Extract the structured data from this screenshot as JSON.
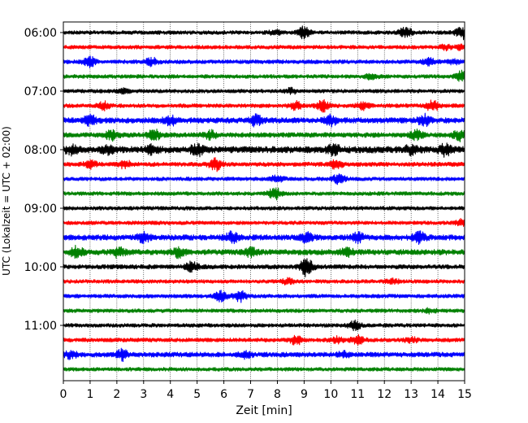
{
  "chart_data": {
    "type": "line",
    "title": "",
    "xlabel": "Zeit  [min]",
    "ylabel": "UTC (Lokalzeit = UTC + 02:00)",
    "xlim": [
      0,
      15
    ],
    "x_ticks": [
      0,
      1,
      2,
      3,
      4,
      5,
      6,
      7,
      8,
      9,
      10,
      11,
      12,
      13,
      14,
      15
    ],
    "x_tick_labels": [
      "0",
      "1",
      "2",
      "3",
      "4",
      "5",
      "6",
      "7",
      "8",
      "9",
      "10",
      "11",
      "12",
      "13",
      "14",
      "15"
    ],
    "y_tick_labels": [
      "06:00",
      "07:00",
      "08:00",
      "09:00",
      "10:00",
      "11:00"
    ],
    "y_tick_rows": [
      0,
      4,
      8,
      12,
      16,
      20
    ],
    "grid_x": true,
    "trace_interval_minutes": 15,
    "trace_colors": [
      "#000000",
      "#ff0000",
      "#0000ff",
      "#008000"
    ],
    "series": [
      {
        "start": "06:00",
        "base": 0.1,
        "bursts": [
          [
            7.9,
            0.3
          ],
          [
            9.0,
            0.9
          ],
          [
            12.8,
            0.9
          ],
          [
            14.9,
            1.0
          ]
        ]
      },
      {
        "start": "06:15",
        "base": 0.1,
        "bursts": [
          [
            14.3,
            0.4
          ],
          [
            14.9,
            0.4
          ]
        ]
      },
      {
        "start": "06:30",
        "base": 0.12,
        "bursts": [
          [
            1.0,
            0.7
          ],
          [
            3.3,
            0.6
          ],
          [
            13.7,
            0.6
          ],
          [
            14.6,
            0.3
          ]
        ]
      },
      {
        "start": "06:45",
        "base": 0.1,
        "bursts": [
          [
            11.5,
            0.5
          ],
          [
            14.9,
            0.8
          ]
        ]
      },
      {
        "start": "07:00",
        "base": 0.1,
        "bursts": [
          [
            2.3,
            0.4
          ],
          [
            8.5,
            0.4
          ]
        ]
      },
      {
        "start": "07:15",
        "base": 0.12,
        "bursts": [
          [
            1.5,
            0.6
          ],
          [
            8.7,
            0.6
          ],
          [
            9.7,
            0.9
          ],
          [
            11.2,
            0.6
          ],
          [
            13.8,
            0.9
          ]
        ]
      },
      {
        "start": "07:30",
        "base": 0.25,
        "bursts": [
          [
            1.0,
            0.8
          ],
          [
            4.0,
            0.7
          ],
          [
            7.2,
            0.8
          ],
          [
            10.0,
            0.7
          ],
          [
            13.5,
            0.8
          ]
        ]
      },
      {
        "start": "07:45",
        "base": 0.2,
        "bursts": [
          [
            1.8,
            0.7
          ],
          [
            3.4,
            0.8
          ],
          [
            5.5,
            0.6
          ],
          [
            13.2,
            0.7
          ],
          [
            14.8,
            0.8
          ]
        ]
      },
      {
        "start": "08:00",
        "base": 0.35,
        "bursts": [
          [
            0.3,
            0.6
          ],
          [
            1.7,
            0.6
          ],
          [
            3.3,
            0.6
          ],
          [
            5.0,
            0.9
          ],
          [
            10.1,
            0.7
          ],
          [
            13.0,
            0.6
          ],
          [
            14.3,
            0.9
          ]
        ]
      },
      {
        "start": "08:15",
        "base": 0.15,
        "bursts": [
          [
            1.0,
            0.6
          ],
          [
            2.3,
            0.6
          ],
          [
            5.7,
            1.0
          ],
          [
            10.2,
            0.7
          ]
        ]
      },
      {
        "start": "08:30",
        "base": 0.1,
        "bursts": [
          [
            8.0,
            0.6
          ],
          [
            10.3,
            0.8
          ]
        ]
      },
      {
        "start": "08:45",
        "base": 0.1,
        "bursts": [
          [
            7.9,
            1.0
          ]
        ]
      },
      {
        "start": "09:00",
        "base": 0.1,
        "bursts": []
      },
      {
        "start": "09:15",
        "base": 0.1,
        "bursts": [
          [
            14.9,
            0.5
          ]
        ]
      },
      {
        "start": "09:30",
        "base": 0.25,
        "bursts": [
          [
            3.0,
            0.7
          ],
          [
            6.3,
            0.8
          ],
          [
            9.1,
            0.7
          ],
          [
            11.0,
            0.7
          ],
          [
            13.3,
            0.9
          ]
        ]
      },
      {
        "start": "09:45",
        "base": 0.25,
        "bursts": [
          [
            0.5,
            0.8
          ],
          [
            2.1,
            0.8
          ],
          [
            4.3,
            0.7
          ],
          [
            7.0,
            0.6
          ],
          [
            10.6,
            0.6
          ]
        ]
      },
      {
        "start": "10:00",
        "base": 0.15,
        "bursts": [
          [
            4.8,
            0.7
          ],
          [
            9.1,
            1.5
          ]
        ]
      },
      {
        "start": "10:15",
        "base": 0.1,
        "bursts": [
          [
            8.4,
            0.4
          ],
          [
            12.3,
            0.4
          ]
        ]
      },
      {
        "start": "10:30",
        "base": 0.1,
        "bursts": [
          [
            5.9,
            0.9
          ],
          [
            6.6,
            0.9
          ]
        ]
      },
      {
        "start": "10:45",
        "base": 0.1,
        "bursts": [
          [
            13.7,
            0.3
          ]
        ]
      },
      {
        "start": "11:00",
        "base": 0.1,
        "bursts": [
          [
            10.9,
            0.8
          ]
        ]
      },
      {
        "start": "11:15",
        "base": 0.12,
        "bursts": [
          [
            8.7,
            0.7
          ],
          [
            10.2,
            0.5
          ],
          [
            11.0,
            0.7
          ],
          [
            13.0,
            0.4
          ]
        ]
      },
      {
        "start": "11:30",
        "base": 0.2,
        "bursts": [
          [
            0.3,
            0.6
          ],
          [
            2.2,
            0.8
          ],
          [
            6.8,
            0.5
          ],
          [
            10.5,
            0.4
          ]
        ]
      },
      {
        "start": "11:45",
        "base": 0.1,
        "bursts": []
      }
    ]
  }
}
